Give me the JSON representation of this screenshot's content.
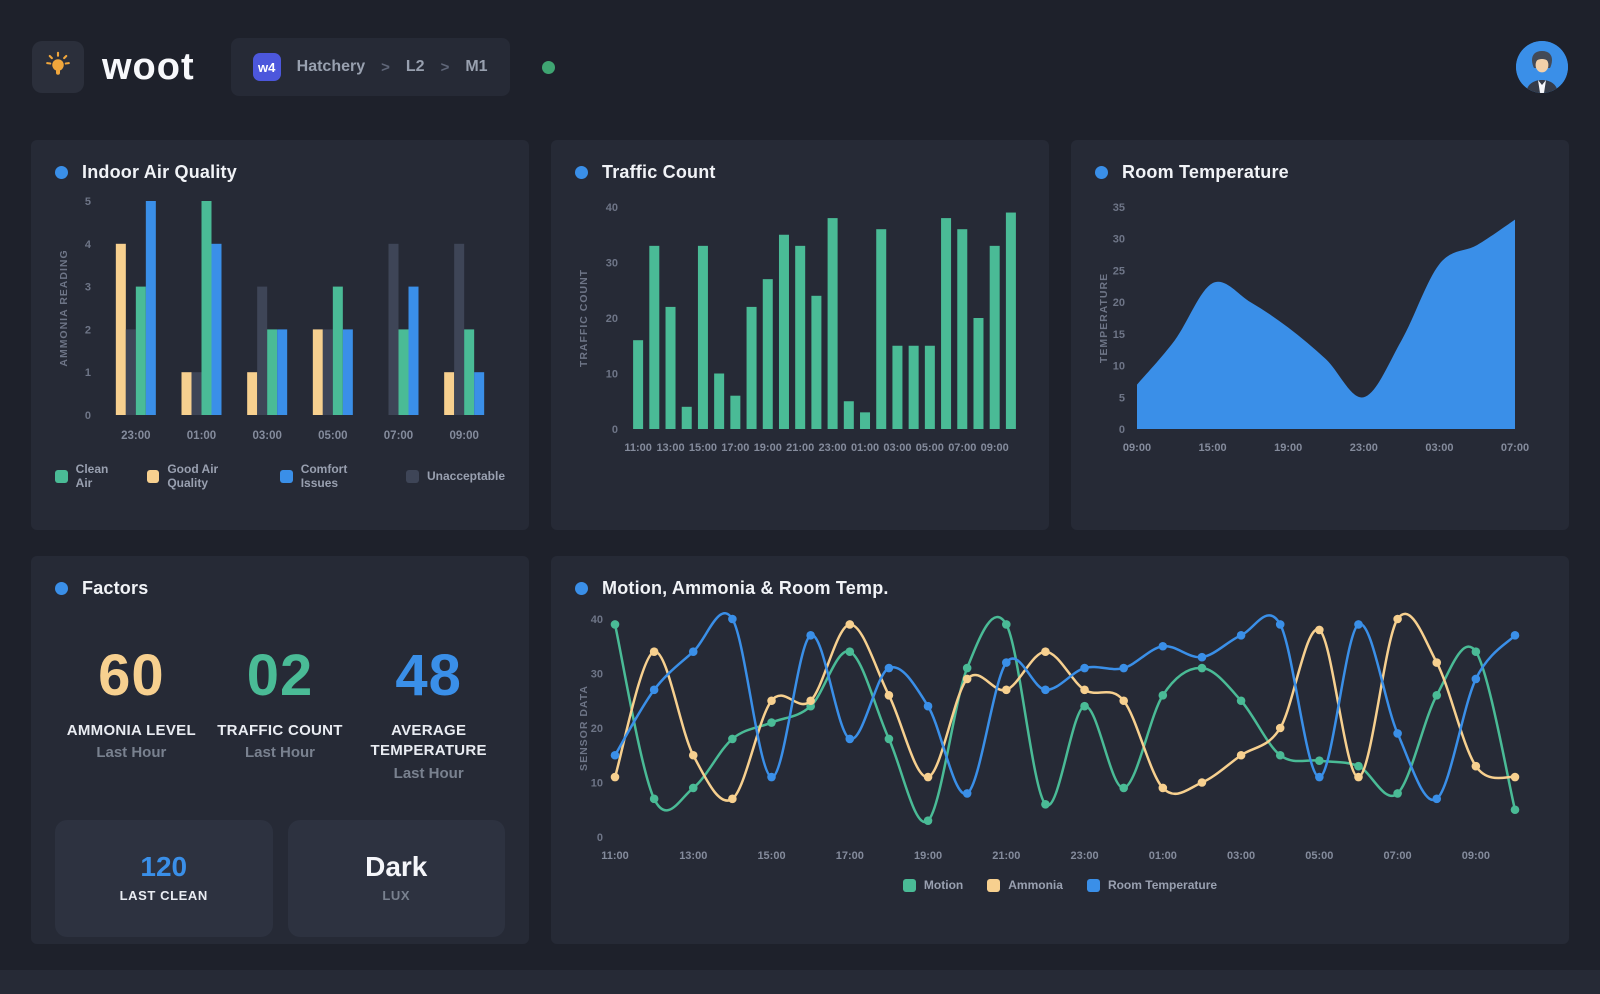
{
  "header": {
    "logo_text": "woot",
    "breadcrumb": {
      "badge": "w4",
      "items": [
        "Hatchery",
        "L2",
        "M1"
      ],
      "separator": ">"
    },
    "status_dot_color": "#3fa572"
  },
  "colors": {
    "page_bg": "#1e212b",
    "card_bg": "#262a36",
    "accent_blue": "#3a8fe8",
    "green": "#4abb96",
    "yellow": "#f7d08f",
    "slate": "#3e4557"
  },
  "cards": {
    "air_quality": {
      "title": "Indoor Air Quality",
      "chart_data": {
        "type": "bar",
        "ylabel": "AMMONIA READING",
        "ylim": [
          0,
          5
        ],
        "yticks": [
          0,
          1,
          2,
          3,
          4,
          5
        ],
        "categories": [
          "23:00",
          "01:00",
          "03:00",
          "05:00",
          "07:00",
          "09:00"
        ],
        "series": [
          {
            "name": "Good Air Quality",
            "color": "#f7d08f",
            "values": [
              4,
              1,
              1,
              2,
              0,
              1
            ]
          },
          {
            "name": "Unacceptable",
            "color": "#3e4557",
            "values": [
              2,
              1,
              3,
              2,
              4,
              4
            ]
          },
          {
            "name": "Clean Air",
            "color": "#4abb96",
            "values": [
              3,
              5,
              2,
              3,
              2,
              2
            ]
          },
          {
            "name": "Comfort Issues",
            "color": "#3a8fe8",
            "values": [
              5,
              4,
              2,
              2,
              3,
              1
            ]
          }
        ],
        "legend": [
          {
            "label": "Clean Air",
            "color": "#4abb96"
          },
          {
            "label": "Good Air Quality",
            "color": "#f7d08f"
          },
          {
            "label": "Comfort Issues",
            "color": "#3a8fe8"
          },
          {
            "label": "Unacceptable",
            "color": "#3e4557"
          }
        ]
      }
    },
    "traffic": {
      "title": "Traffic Count",
      "chart_data": {
        "type": "bar",
        "ylabel": "TRAFFIC COUNT",
        "ylim": [
          0,
          40
        ],
        "yticks": [
          0,
          10,
          20,
          30,
          40
        ],
        "color": "#4abb96",
        "x_labels": [
          "11:00",
          "13:00",
          "15:00",
          "17:00",
          "19:00",
          "21:00",
          "23:00",
          "01:00",
          "03:00",
          "05:00",
          "07:00",
          "09:00"
        ],
        "values": [
          16,
          33,
          22,
          4,
          33,
          10,
          6,
          22,
          27,
          35,
          33,
          24,
          38,
          5,
          3,
          36,
          15,
          15,
          15,
          38,
          36,
          20,
          33,
          39
        ]
      }
    },
    "room_temp": {
      "title": "Room Temperature",
      "chart_data": {
        "type": "area",
        "ylabel": "TEMPERATURE",
        "ylim": [
          0,
          35
        ],
        "yticks": [
          0,
          5,
          10,
          15,
          20,
          25,
          30,
          35
        ],
        "color": "#3a8fe8",
        "x_labels": [
          "09:00",
          "15:00",
          "19:00",
          "23:00",
          "03:00",
          "07:00"
        ],
        "values": [
          7,
          14,
          23,
          20,
          16,
          11,
          5,
          14,
          26,
          29,
          33
        ]
      }
    },
    "factors": {
      "title": "Factors",
      "stats": [
        {
          "value": "60",
          "label": "AMMONIA LEVEL",
          "sub": "Last Hour",
          "color": "#f7d08f"
        },
        {
          "value": "02",
          "label": "TRAFFIC COUNT",
          "sub": "Last Hour",
          "color": "#4abb96"
        },
        {
          "value": "48",
          "label": "AVERAGE TEMPERATURE",
          "sub": "Last Hour",
          "color": "#3a8fe8"
        }
      ],
      "chips": [
        {
          "value": "120",
          "label": "LAST CLEAN",
          "value_color": "#3a8fe8",
          "label_color": "#e9ecf2"
        },
        {
          "value": "Dark",
          "label": "LUX",
          "value_color": "#f5f6fa",
          "label_color": "#79818f"
        }
      ]
    },
    "motion": {
      "title": "Motion, Ammonia & Room Temp.",
      "chart_data": {
        "type": "line",
        "ylabel": "SENSOR DATA",
        "ylim": [
          0,
          40
        ],
        "yticks": [
          0,
          10,
          20,
          30,
          40
        ],
        "x_labels": [
          "11:00",
          "13:00",
          "15:00",
          "17:00",
          "19:00",
          "21:00",
          "23:00",
          "01:00",
          "03:00",
          "05:00",
          "07:00",
          "09:00"
        ],
        "series": [
          {
            "name": "Motion",
            "color": "#4abb96",
            "values": [
              39,
              7,
              9,
              18,
              21,
              24,
              34,
              18,
              3,
              31,
              39,
              6,
              24,
              9,
              26,
              31,
              25,
              15,
              14,
              13,
              8,
              26,
              34,
              5
            ]
          },
          {
            "name": "Ammonia",
            "color": "#f7d08f",
            "values": [
              11,
              34,
              15,
              7,
              25,
              25,
              39,
              26,
              11,
              29,
              27,
              34,
              27,
              25,
              9,
              10,
              15,
              20,
              38,
              11,
              40,
              32,
              13,
              11
            ]
          },
          {
            "name": "Room Temperature",
            "color": "#3a8fe8",
            "values": [
              15,
              27,
              34,
              40,
              11,
              37,
              18,
              31,
              24,
              8,
              32,
              27,
              31,
              31,
              35,
              33,
              37,
              39,
              11,
              39,
              19,
              7,
              29,
              37
            ]
          }
        ]
      }
    }
  }
}
